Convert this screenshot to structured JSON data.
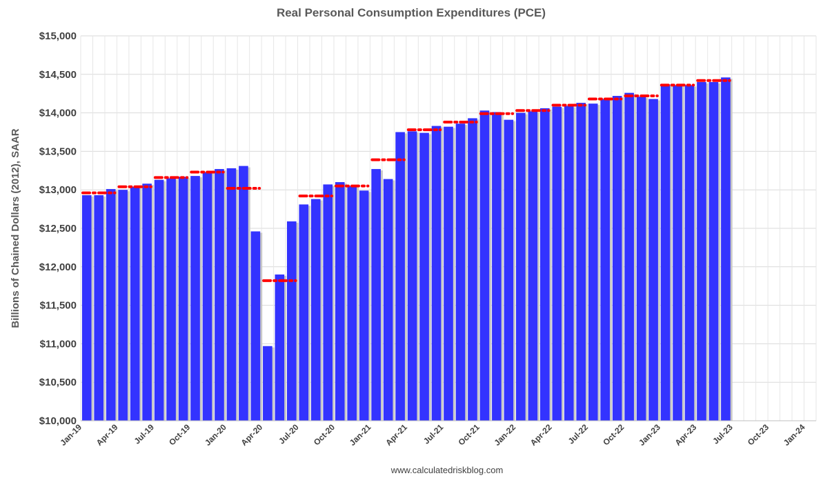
{
  "chart_data": {
    "type": "bar",
    "title": "Real Personal Consumption Expenditures (PCE)",
    "ylabel": "Billions of Chained Dollars (2012), SAAR",
    "xlabel": "",
    "source": "www.calculatedriskblog.com",
    "ylim": [
      10000,
      15000
    ],
    "y_tick_step": 500,
    "y_tick_prefix": "$",
    "x_tick_labels": [
      "Jan-19",
      "Apr-19",
      "Jul-19",
      "Oct-19",
      "Jan-20",
      "Apr-20",
      "Jul-20",
      "Oct-20",
      "Jan-21",
      "Apr-21",
      "Jul-21",
      "Oct-21",
      "Jan-22",
      "Apr-22",
      "Jul-22",
      "Oct-22",
      "Jan-23",
      "Apr-23",
      "Jul-23",
      "Oct-23",
      "Jan-24"
    ],
    "x_range_months": 61,
    "grid": true,
    "legend": "none",
    "bar_color": "#3333ff",
    "quarterly_color": "#ff0000",
    "series": [
      {
        "values": [
          12930,
          12930,
          13010,
          13000,
          13040,
          13080,
          13130,
          13150,
          13170,
          13180,
          13230,
          13270,
          13280,
          13310,
          12460,
          10970,
          11900,
          12590,
          12810,
          12880,
          13070,
          13100,
          13050,
          12990,
          13270,
          13140,
          13750,
          13760,
          13740,
          13830,
          13820,
          13860,
          13930,
          14030,
          14010,
          13910,
          14000,
          14020,
          14060,
          14080,
          14090,
          14130,
          14120,
          14180,
          14220,
          14260,
          14210,
          14180,
          14370,
          14360,
          14360,
          14400,
          14400,
          14460
        ]
      },
      {
        "values": [
          12960,
          13040,
          13160,
          13230,
          13020,
          11820,
          12920,
          13050,
          13390,
          13780,
          13880,
          13990,
          14030,
          14100,
          14180,
          14220,
          14360,
          14420
        ]
      }
    ]
  }
}
